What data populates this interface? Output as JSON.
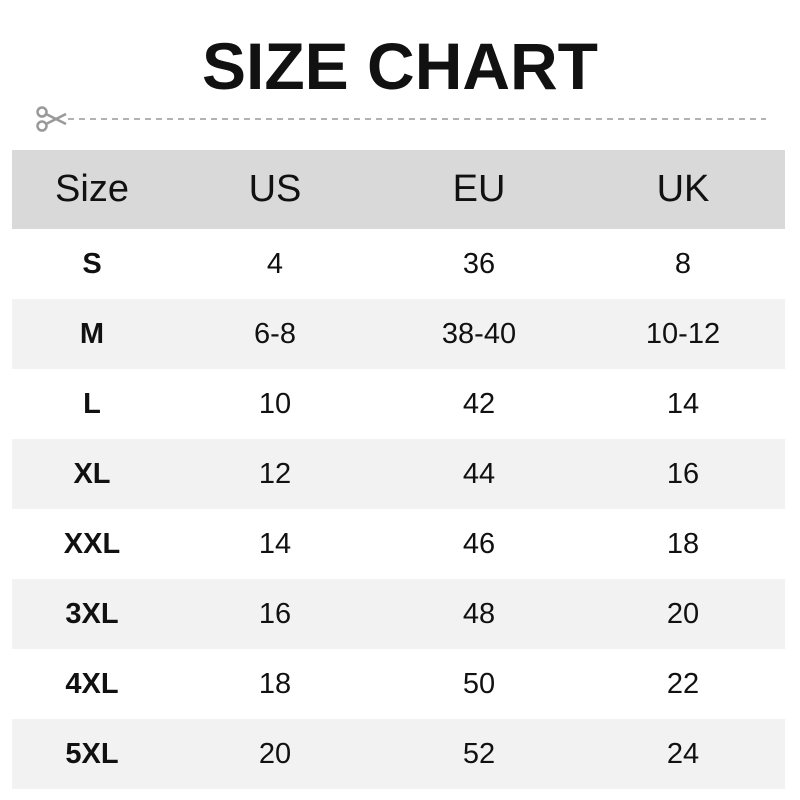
{
  "title": "SIZE CHART",
  "icons": {
    "cut_line": "scissors-icon"
  },
  "table": {
    "headers": [
      "Size",
      "US",
      "EU",
      "UK"
    ],
    "rows": [
      [
        "S",
        "4",
        "36",
        "8"
      ],
      [
        "M",
        "6-8",
        "38-40",
        "10-12"
      ],
      [
        "L",
        "10",
        "42",
        "14"
      ],
      [
        "XL",
        "12",
        "44",
        "16"
      ],
      [
        "XXL",
        "14",
        "46",
        "18"
      ],
      [
        "3XL",
        "16",
        "48",
        "20"
      ],
      [
        "4XL",
        "18",
        "50",
        "22"
      ],
      [
        "5XL",
        "20",
        "52",
        "24"
      ]
    ]
  },
  "colors": {
    "header_bg": "#d9d9d9",
    "alt_row_bg": "#f2f2f2",
    "text": "#111111",
    "cut_line": "#999999"
  }
}
